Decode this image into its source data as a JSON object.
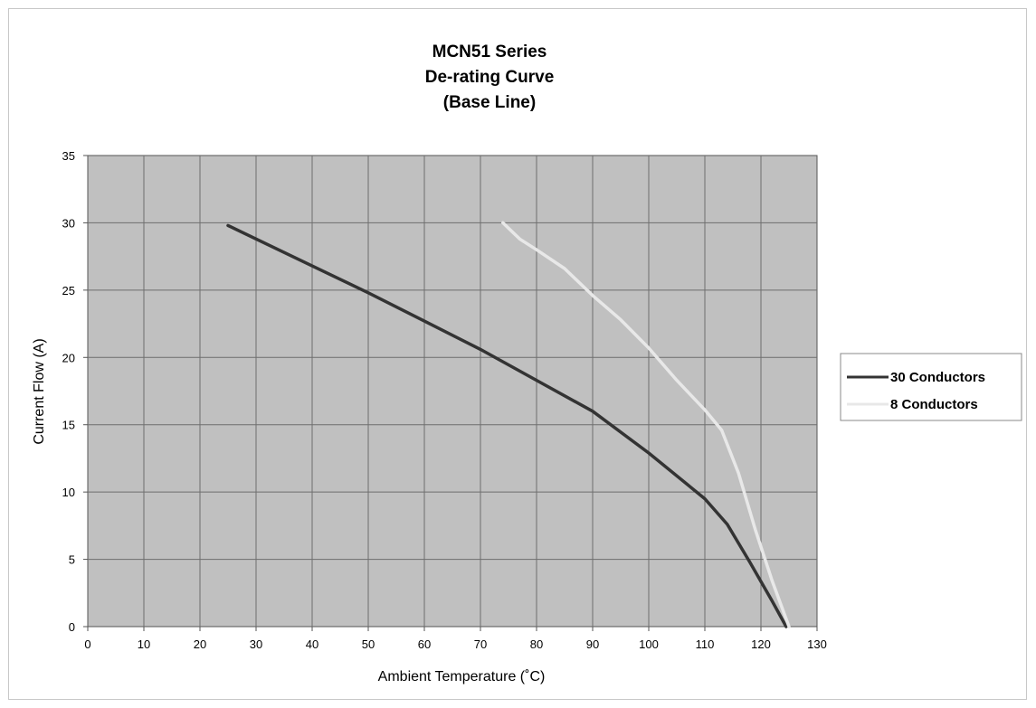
{
  "chart_data": {
    "type": "line",
    "title": [
      "MCN51 Series",
      "De-rating Curve",
      "(Base Line)"
    ],
    "xlabel": "Ambient Temperature (˚C)",
    "ylabel": "Current Flow (A)",
    "xlim": [
      0,
      130
    ],
    "ylim": [
      0,
      35
    ],
    "xticks": [
      "0",
      "10",
      "20",
      "30",
      "40",
      "50",
      "60",
      "70",
      "80",
      "90",
      "100",
      "110",
      "120",
      "130"
    ],
    "yticks": [
      "0",
      "5",
      "10",
      "15",
      "20",
      "25",
      "30",
      "35"
    ],
    "grid": true,
    "legend_position": "right",
    "plot_background": "#c0c0c0",
    "series": [
      {
        "name": "30 Conductors",
        "color": "#333333",
        "x": [
          25,
          40,
          50,
          60,
          70,
          80,
          90,
          100,
          110,
          114,
          118,
          122,
          124.5
        ],
        "y": [
          29.8,
          26.8,
          24.8,
          22.7,
          20.6,
          18.3,
          16.0,
          12.9,
          9.5,
          7.6,
          4.8,
          1.9,
          0
        ]
      },
      {
        "name": "8 Conductors",
        "color": "#e8e8e8",
        "x": [
          74,
          77,
          80,
          85,
          90,
          95,
          100,
          105,
          110,
          113,
          116,
          119,
          122,
          125
        ],
        "y": [
          30.0,
          28.8,
          28.0,
          26.6,
          24.6,
          22.8,
          20.7,
          18.3,
          16.1,
          14.6,
          11.4,
          7.2,
          3.4,
          0
        ]
      }
    ]
  }
}
